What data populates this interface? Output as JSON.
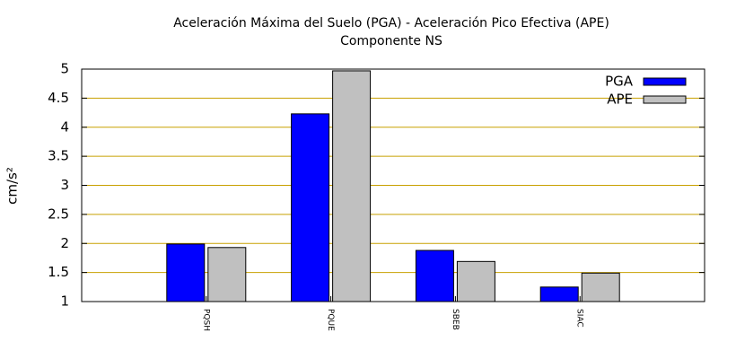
{
  "chart_data": {
    "type": "bar",
    "title": "Aceleración Máxima del Suelo (PGA) -  Aceleración Pico Efectiva (APE)",
    "subtitle": "Componente NS",
    "y_label": "cm/s²",
    "categories": [
      "PQSH",
      "PQUE",
      "SBEB",
      "SIAC"
    ],
    "series": [
      {
        "name": "PGA",
        "color": "#0000ff",
        "values": [
          1.99,
          4.23,
          1.88,
          1.25
        ]
      },
      {
        "name": "APE",
        "color": "#c0c0c0",
        "values": [
          1.93,
          4.97,
          1.69,
          1.49
        ]
      }
    ],
    "ylim": [
      1,
      5
    ],
    "yticks": [
      1,
      1.5,
      2,
      2.5,
      3,
      3.5,
      4,
      4.5,
      5
    ],
    "grid": true,
    "legend": "top-right"
  }
}
